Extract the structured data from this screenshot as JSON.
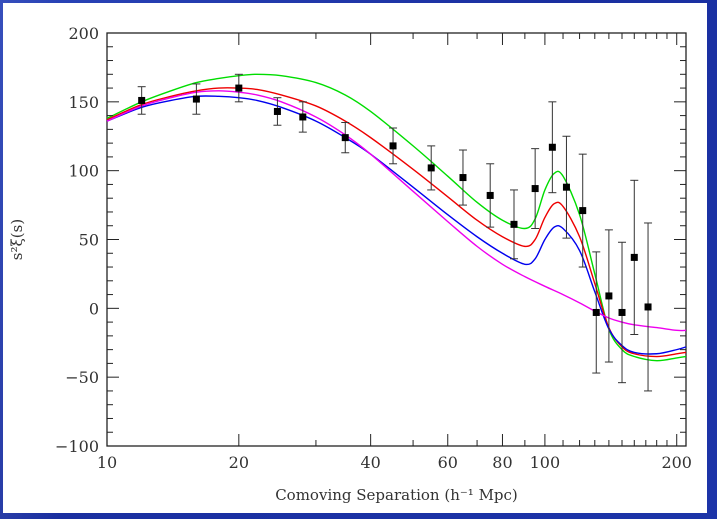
{
  "chart_data": {
    "type": "line",
    "title": "",
    "xlabel": "Comoving Separation (h⁻¹ Mpc)",
    "ylabel": "s²ξ(s)",
    "xscale": "log",
    "xlim": [
      10,
      210
    ],
    "ylim": [
      -100,
      200
    ],
    "grid": false,
    "legend": "none",
    "x_ticks": [
      10,
      20,
      40,
      60,
      80,
      100,
      200
    ],
    "x_tick_labels": [
      "10",
      "20",
      "40",
      "60",
      "80",
      "100",
      "200"
    ],
    "y_ticks": [
      -100,
      -50,
      0,
      50,
      100,
      150,
      200
    ],
    "y_tick_labels": [
      "−100",
      "−50",
      "0",
      "50",
      "100",
      "150",
      "200"
    ],
    "series": [
      {
        "color": "#00dd00",
        "x": [
          10,
          12,
          14,
          16,
          18,
          20,
          22,
          25,
          30,
          35,
          40,
          50,
          60,
          70,
          80,
          90,
          95,
          100,
          105,
          110,
          120,
          130,
          140,
          150,
          160,
          180,
          200,
          210
        ],
        "y": [
          138,
          150,
          158,
          164,
          167,
          169,
          170,
          169,
          164,
          155,
          143,
          118,
          96,
          77,
          64,
          58,
          65,
          86,
          98,
          96,
          68,
          25,
          -15,
          -30,
          -35,
          -38,
          -36,
          -35
        ]
      },
      {
        "color": "#ee0000",
        "x": [
          10,
          12,
          14,
          16,
          18,
          20,
          22,
          25,
          30,
          35,
          40,
          50,
          60,
          70,
          80,
          90,
          95,
          100,
          105,
          110,
          120,
          130,
          140,
          150,
          160,
          180,
          200,
          210
        ],
        "y": [
          137,
          148,
          154,
          158,
          160,
          160,
          159,
          155,
          147,
          136,
          124,
          101,
          81,
          64,
          52,
          45,
          50,
          66,
          76,
          74,
          52,
          18,
          -14,
          -28,
          -33,
          -35,
          -33,
          -32
        ]
      },
      {
        "color": "#0000ee",
        "x": [
          10,
          12,
          14,
          16,
          18,
          20,
          22,
          25,
          30,
          35,
          40,
          50,
          60,
          70,
          80,
          90,
          95,
          100,
          105,
          110,
          120,
          130,
          140,
          150,
          160,
          180,
          200,
          210
        ],
        "y": [
          136,
          146,
          151,
          154,
          154,
          153,
          151,
          146,
          136,
          124,
          112,
          88,
          68,
          52,
          40,
          32,
          36,
          50,
          59,
          58,
          42,
          12,
          -15,
          -27,
          -32,
          -33,
          -30,
          -28
        ]
      },
      {
        "color": "#ee00ee",
        "x": [
          10,
          12,
          14,
          16,
          18,
          20,
          22,
          25,
          30,
          35,
          40,
          50,
          60,
          70,
          80,
          90,
          100,
          110,
          120,
          130,
          140,
          150,
          160,
          180,
          200,
          210
        ],
        "y": [
          136,
          147,
          153,
          157,
          158,
          157,
          155,
          150,
          139,
          126,
          112,
          85,
          63,
          45,
          32,
          23,
          16,
          10,
          4,
          -2,
          -7,
          -10,
          -12,
          -14,
          -16,
          -16
        ]
      }
    ],
    "points": [
      {
        "x": 12.0,
        "y": 151,
        "err": 10
      },
      {
        "x": 16.0,
        "y": 152,
        "err": 11
      },
      {
        "x": 20.0,
        "y": 160,
        "err": 10
      },
      {
        "x": 24.5,
        "y": 143,
        "err": 10
      },
      {
        "x": 28.0,
        "y": 139,
        "err": 11
      },
      {
        "x": 35.0,
        "y": 124,
        "err": 11
      },
      {
        "x": 45.0,
        "y": 118,
        "err": 13
      },
      {
        "x": 55.0,
        "y": 102,
        "err": 16
      },
      {
        "x": 65.0,
        "y": 95,
        "err": 20
      },
      {
        "x": 75.0,
        "y": 82,
        "err": 23
      },
      {
        "x": 85.0,
        "y": 61,
        "err": 25
      },
      {
        "x": 95.0,
        "y": 87,
        "err": 29
      },
      {
        "x": 104.0,
        "y": 117,
        "err": 33
      },
      {
        "x": 112.0,
        "y": 88,
        "err": 37
      },
      {
        "x": 122.0,
        "y": 71,
        "err": 41
      },
      {
        "x": 131.0,
        "y": -3,
        "err": 44
      },
      {
        "x": 140.0,
        "y": 9,
        "err": 48
      },
      {
        "x": 150.0,
        "y": -3,
        "err": 51
      },
      {
        "x": 160.0,
        "y": 37,
        "err": 56
      },
      {
        "x": 172.0,
        "y": 1,
        "err": 61
      }
    ]
  }
}
